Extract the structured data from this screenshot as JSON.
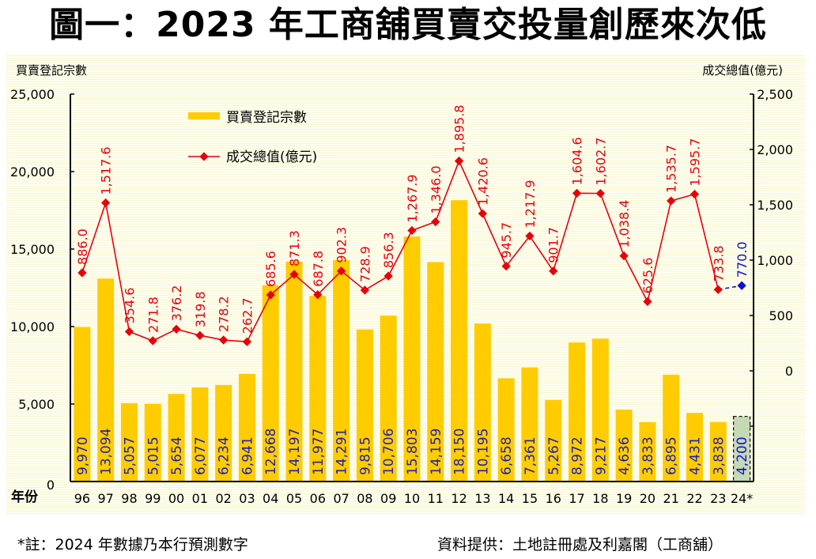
{
  "title": "圖一：2023 年工商舖買賣交投量創歷來次低",
  "footnote_left": "*註：2024 年數據乃本行預測數字",
  "footnote_right": "資料提供：土地註冊處及利嘉閣（工商舖）",
  "colors": {
    "bar": "#FFCC00",
    "bar_forecast": "#C4D9B4",
    "line": "#E8000B",
    "forecast": "#1010D0",
    "bar_label": "#2020B0",
    "axis": "#000000"
  },
  "chart_data": {
    "type": "bar+line",
    "title": "圖一：2023 年工商舖買賣交投量創歷來次低",
    "xlabel": "年份",
    "ylabel": "買賣登記宗數",
    "y2label": "成交總值(億元)",
    "ylim": [
      0,
      25000
    ],
    "y2lim": [
      -1000,
      2500
    ],
    "yticks": [
      "0",
      "5,000",
      "10,000",
      "15,000",
      "20,000",
      "25,000"
    ],
    "yticks_values": [
      0,
      5000,
      10000,
      15000,
      20000,
      25000
    ],
    "y2ticks": [
      "0",
      "500",
      "1,000",
      "1,500",
      "2,000",
      "2,500"
    ],
    "y2ticks_values": [
      0,
      500,
      1000,
      1500,
      2000,
      2500
    ],
    "legend": {
      "position": "top-left",
      "entries": [
        {
          "label": "買賣登記宗數",
          "kind": "bar"
        },
        {
          "label": "成交總值(億元)",
          "kind": "line"
        }
      ]
    },
    "categories": [
      "96",
      "97",
      "98",
      "99",
      "00",
      "01",
      "02",
      "03",
      "04",
      "05",
      "06",
      "07",
      "08",
      "09",
      "10",
      "11",
      "12",
      "13",
      "14",
      "15",
      "16",
      "17",
      "18",
      "19",
      "20",
      "21",
      "22",
      "23",
      "24*"
    ],
    "series": [
      {
        "name": "買賣登記宗數",
        "type": "bar",
        "axis": "left",
        "values": [
          9970,
          13094,
          5057,
          5015,
          5654,
          6077,
          6234,
          6941,
          12668,
          14197,
          11977,
          14291,
          9815,
          10706,
          15803,
          14159,
          18150,
          10195,
          6658,
          7361,
          5267,
          8972,
          9217,
          4636,
          3833,
          6895,
          4431,
          3838,
          4200
        ],
        "labels": [
          "9,970",
          "13,094",
          "5,057",
          "5,015",
          "5,654",
          "6,077",
          "6,234",
          "6,941",
          "12,668",
          "14,197",
          "11,977",
          "14,291",
          "9,815",
          "10,706",
          "15,803",
          "14,159",
          "18,150",
          "10,195",
          "6,658",
          "7,361",
          "5,267",
          "8,972",
          "9,217",
          "4,636",
          "3,833",
          "6,895",
          "4,431",
          "3,838",
          "4,200"
        ],
        "forecast_index": 28
      },
      {
        "name": "成交總值(億元)",
        "type": "line",
        "axis": "right",
        "values": [
          886.0,
          1517.6,
          354.6,
          271.8,
          376.2,
          319.8,
          278.2,
          262.7,
          685.6,
          871.3,
          687.8,
          902.3,
          728.9,
          856.3,
          1267.9,
          1346.0,
          1895.8,
          1420.6,
          945.7,
          1217.9,
          901.7,
          1604.6,
          1602.7,
          1038.4,
          625.6,
          1535.7,
          1595.7,
          733.8,
          770.0
        ],
        "labels": [
          "886.0",
          "1,517.6",
          "354.6",
          "271.8",
          "376.2",
          "319.8",
          "278.2",
          "262.7",
          "685.6",
          "871.3",
          "687.8",
          "902.3",
          "728.9",
          "856.3",
          "1,267.9",
          "1,346.0",
          "1,895.8",
          "1,420.6",
          "945.7",
          "1,217.9",
          "901.7",
          "1,604.6",
          "1,602.7",
          "1,038.4",
          "625.6",
          "1,535.7",
          "1,595.7",
          "733.8",
          "770.0"
        ],
        "forecast_index": 28
      }
    ]
  }
}
